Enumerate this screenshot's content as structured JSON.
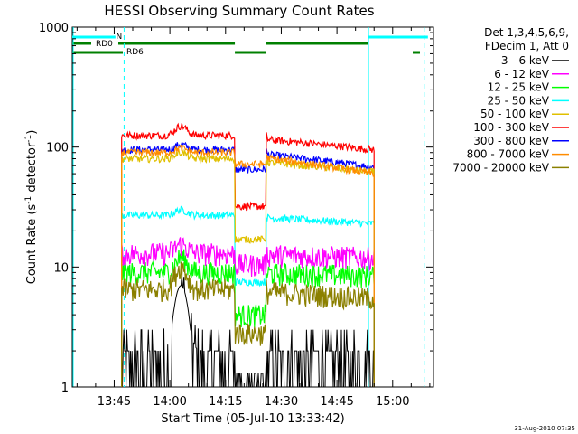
{
  "chart_data": {
    "type": "line",
    "title": "HESSI Observing Summary Count Rates",
    "xlabel": "Start Time (05-Jul-10 13:33:42)",
    "ylabel_main": "Count Rate (s",
    "ylabel_sup1": "-1",
    "ylabel_mid": " detector",
    "ylabel_sup2": "-1",
    "ylabel_end": ")",
    "yscale": "log",
    "ylim": [
      1,
      1000
    ],
    "xlim": [
      "13:33:42",
      "15:11:00"
    ],
    "x_ticks": [
      "13:45",
      "14:00",
      "14:15",
      "14:30",
      "14:45",
      "15:00"
    ],
    "y_ticks": [
      "1",
      "10",
      "100",
      "1000"
    ],
    "footer_timestamp": "31-Aug-2010 07:35",
    "legend_header": [
      "Det 1,3,4,5,6,9,",
      "FDecim 1, Att 0"
    ],
    "legend_position": "right",
    "attenuator_labels": {
      "night": "N",
      "rd0": "RD0",
      "rd6": "RD6"
    },
    "data_start": "13:47:00",
    "data_end": "14:55:00",
    "gap_start": "14:17:30",
    "gap_end": "14:26:00",
    "flare_peak": "14:03:00",
    "series": [
      {
        "name": "3 - 6 keV",
        "color": "#000000",
        "pre": 1.6,
        "peak": 7.0,
        "gap": 1.0,
        "post": 1.6
      },
      {
        "name": "6 - 12 keV",
        "color": "#ff00ff",
        "pre": 13,
        "peak": 15.5,
        "gap": 10.5,
        "post": 12
      },
      {
        "name": "12 - 25 keV",
        "color": "#00ff00",
        "pre": 9,
        "peak": 12,
        "gap": 4.0,
        "post": 8.5
      },
      {
        "name": "25 - 50 keV",
        "color": "#00ffff",
        "pre": 27,
        "peak": 30,
        "gap": 7.5,
        "post": 23
      },
      {
        "name": "50 - 100 keV",
        "color": "#e0c000",
        "pre": 80,
        "peak": 90,
        "gap": 17,
        "post": 62
      },
      {
        "name": "100 - 300 keV",
        "color": "#ff0000",
        "pre": 125,
        "peak": 150,
        "gap": 32,
        "post": 95
      },
      {
        "name": "300 - 800 keV",
        "color": "#0000ff",
        "pre": 95,
        "peak": 105,
        "gap": 65,
        "post": 68
      },
      {
        "name": "800 - 7000 keV",
        "color": "#ff8c00",
        "pre": 90,
        "peak": 98,
        "gap": 72,
        "post": 60
      },
      {
        "name": "7000 - 20000 keV",
        "color": "#8b8000",
        "pre": 6.5,
        "peak": 10,
        "gap": 2.8,
        "post": 5.5
      }
    ]
  }
}
